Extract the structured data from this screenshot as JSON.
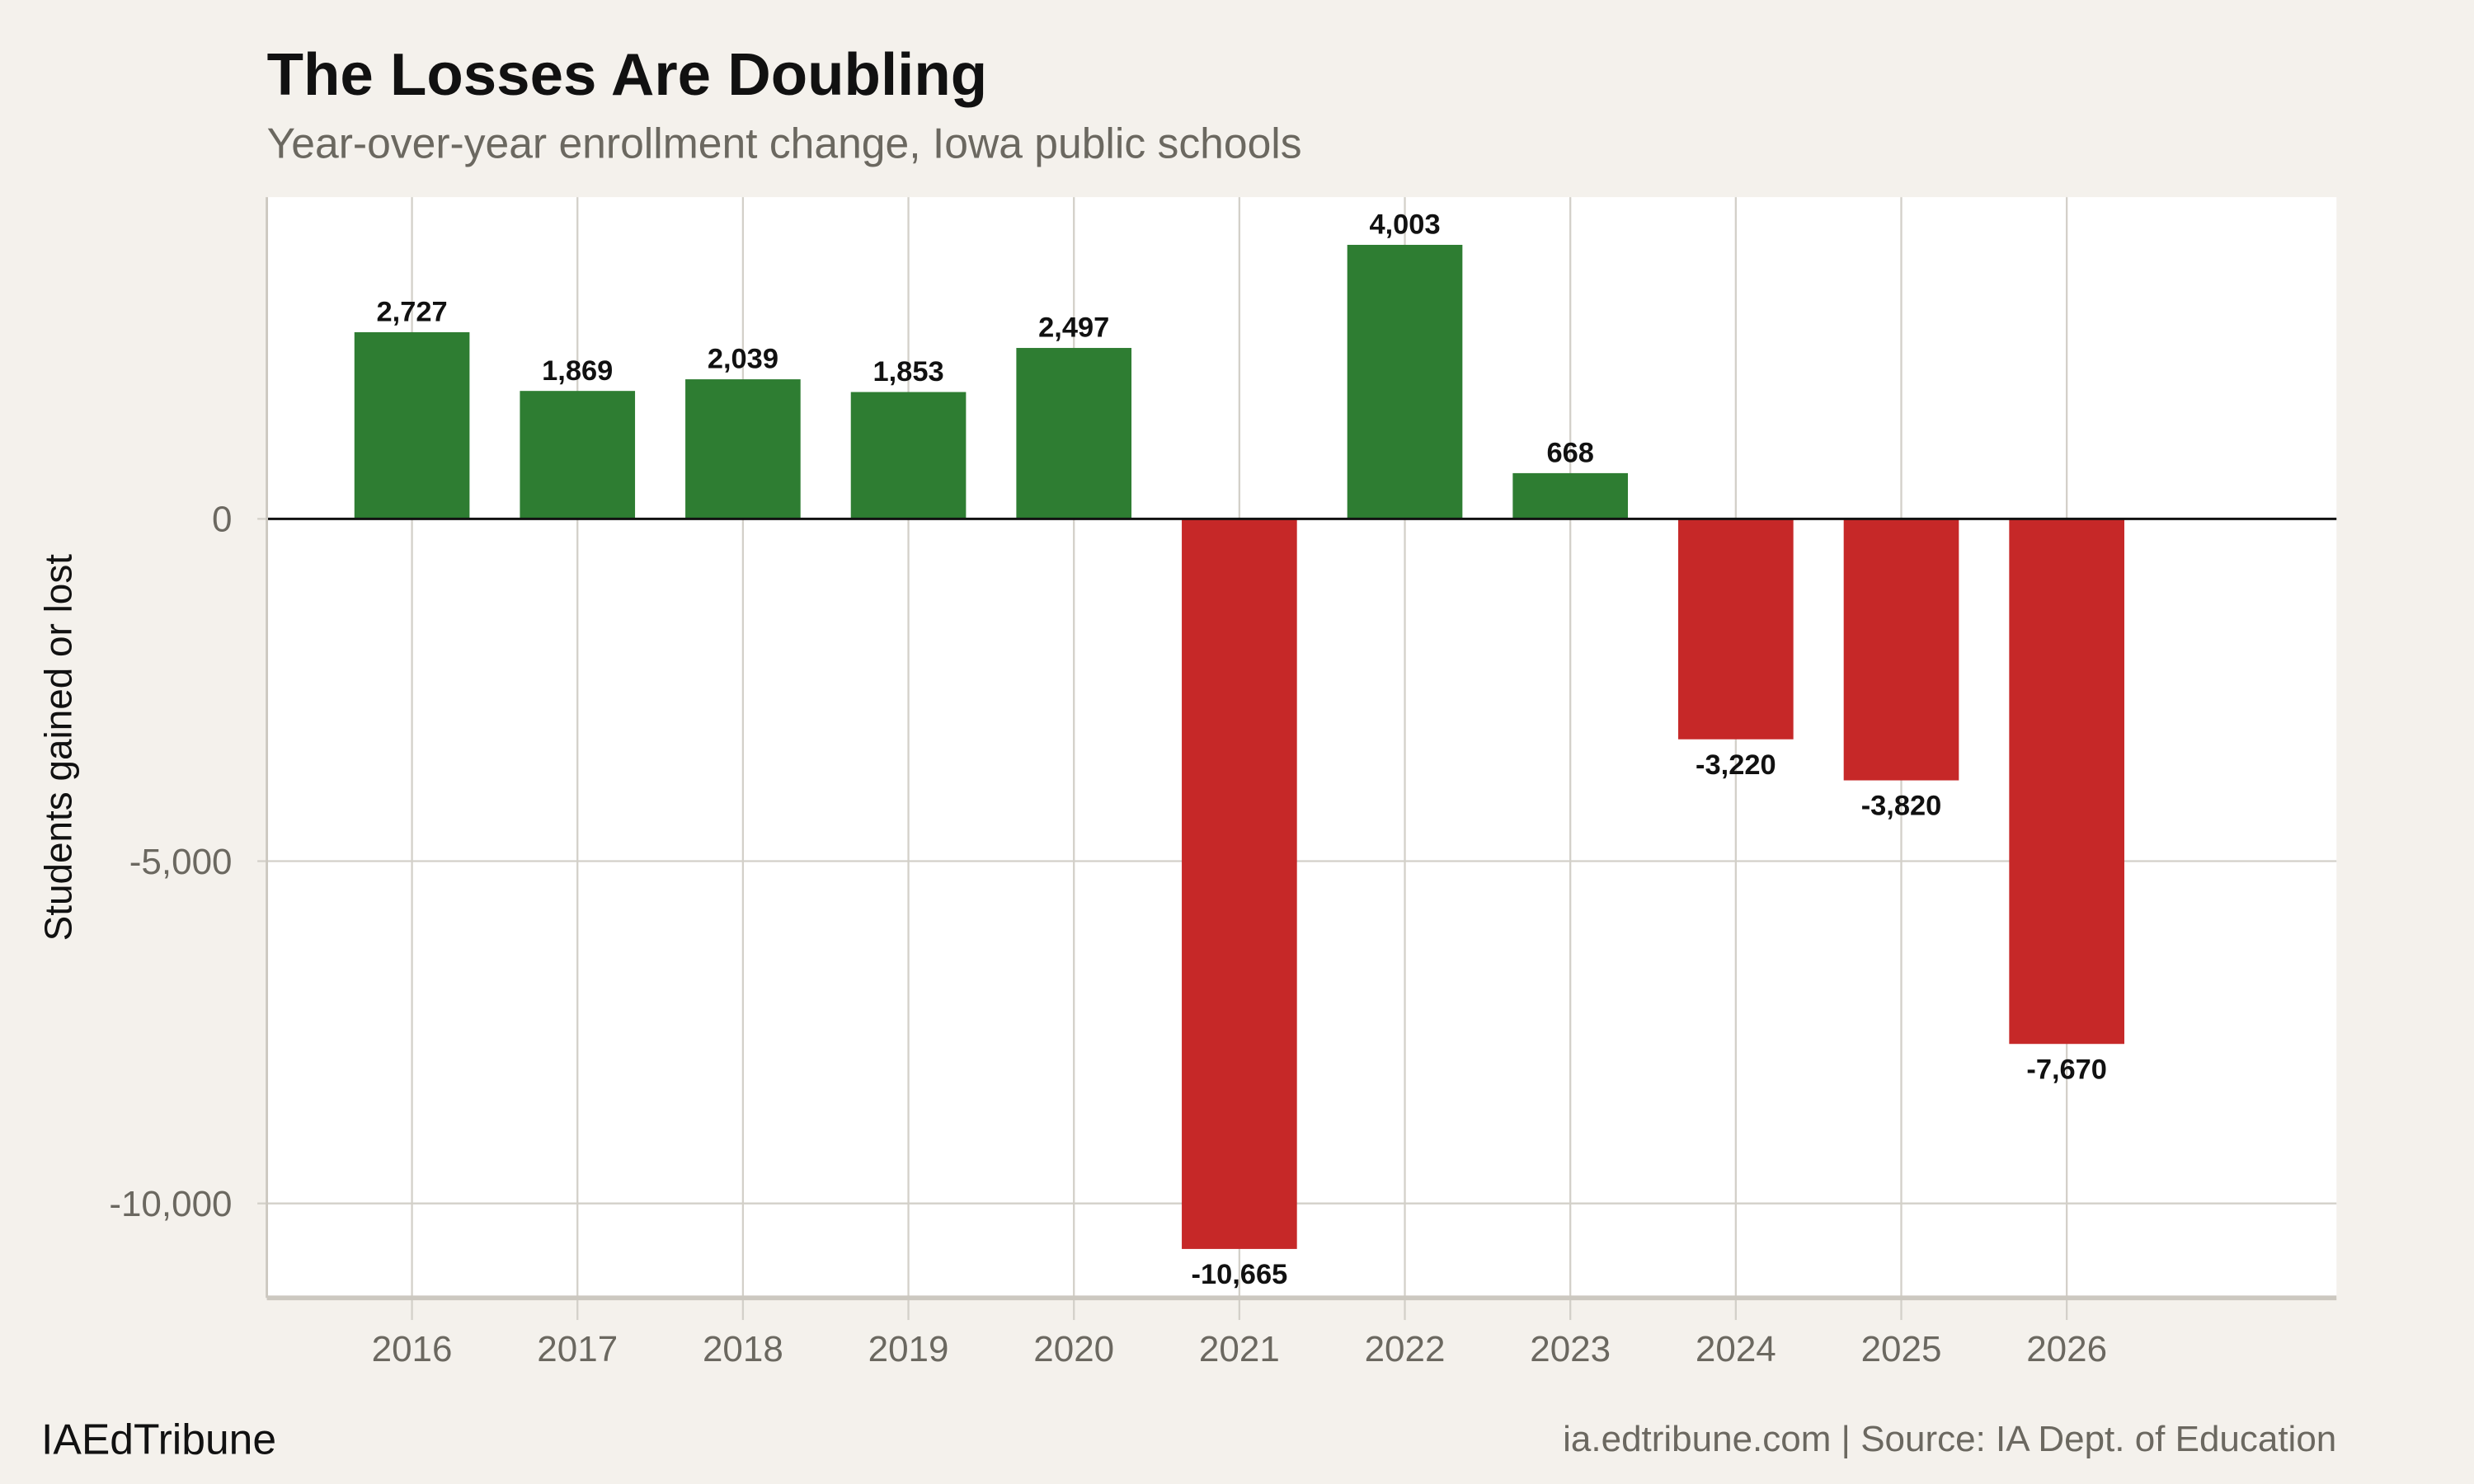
{
  "chart_data": {
    "type": "bar",
    "title": "The Losses Are Doubling",
    "subtitle": "Year-over-year enrollment change, Iowa public schools",
    "xlabel": "",
    "ylabel": "Students gained or lost",
    "categories": [
      "2016",
      "2017",
      "2018",
      "2019",
      "2020",
      "2021",
      "2022",
      "2023",
      "2024",
      "2025",
      "2026"
    ],
    "values": [
      2727,
      1869,
      2039,
      1853,
      2497,
      -10665,
      4003,
      668,
      -3220,
      -3820,
      -7670
    ],
    "data_labels": [
      "2,727",
      "1,869",
      "2,039",
      "1,853",
      "2,497",
      "-10,665",
      "4,003",
      "668",
      "-3,220",
      "-3,820",
      "-7,670"
    ],
    "ylim": [
      -11380,
      4700
    ],
    "yticks": [
      0,
      -5000,
      -10000
    ],
    "ytick_labels": [
      "0",
      "-5,000",
      "-10,000"
    ],
    "grid": true,
    "colors": {
      "positive": "#2e7d32",
      "negative": "#c62828",
      "background": "#f4f1ec",
      "panel": "#ffffff",
      "grid": "#d3d0c9"
    }
  },
  "footer": {
    "brand": "IAEdTribune",
    "source": "ia.edtribune.com | Source: IA Dept. of Education"
  }
}
